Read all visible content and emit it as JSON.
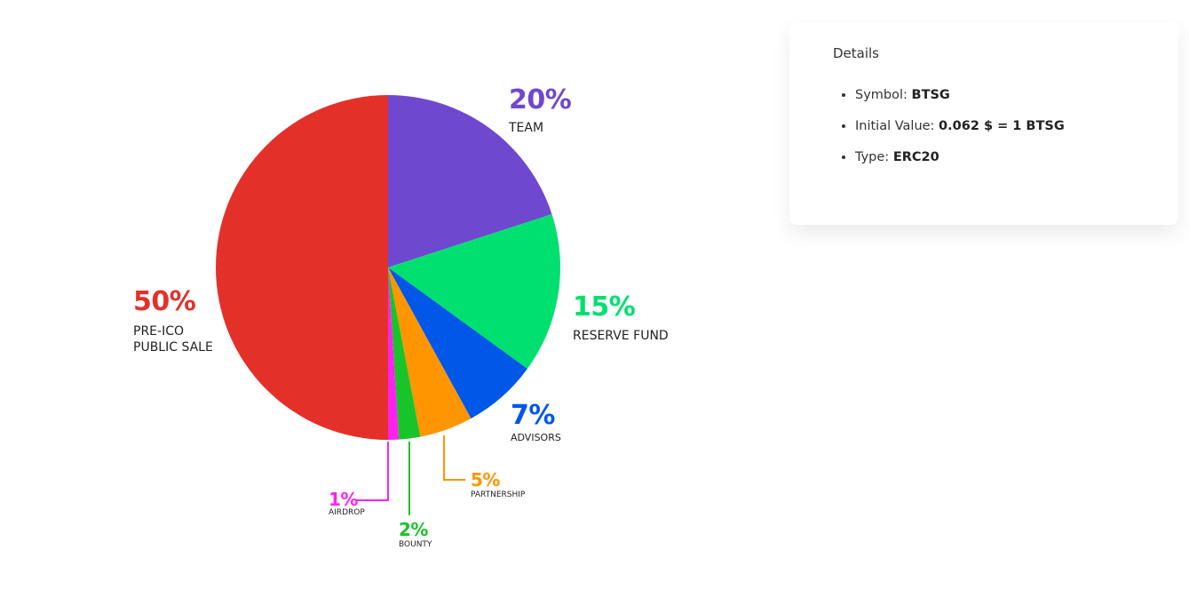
{
  "chart_data": {
    "type": "pie",
    "categories": [
      "TEAM",
      "RESERVE FUND",
      "ADVISORS",
      "PARTNERSHIP",
      "BOUNTY",
      "AIRDROP",
      "PRE-ICO PUBLIC SALE"
    ],
    "values": [
      20,
      15,
      7,
      5,
      2,
      1,
      50
    ],
    "value_labels": [
      "20%",
      "15%",
      "7%",
      "5%",
      "2%",
      "1%",
      "50%"
    ],
    "colors": [
      "#6f48d0",
      "#00e070",
      "#0057e8",
      "#ff9500",
      "#18c42a",
      "#ff22ee",
      "#e3312a"
    ]
  },
  "details": {
    "title": "Details",
    "items": [
      {
        "label": "Symbol:",
        "value": "BTSG"
      },
      {
        "label": "Initial Value:",
        "value": "0.062 $ = 1 BTSG"
      },
      {
        "label": "Type:",
        "value": "ERC20"
      }
    ]
  }
}
